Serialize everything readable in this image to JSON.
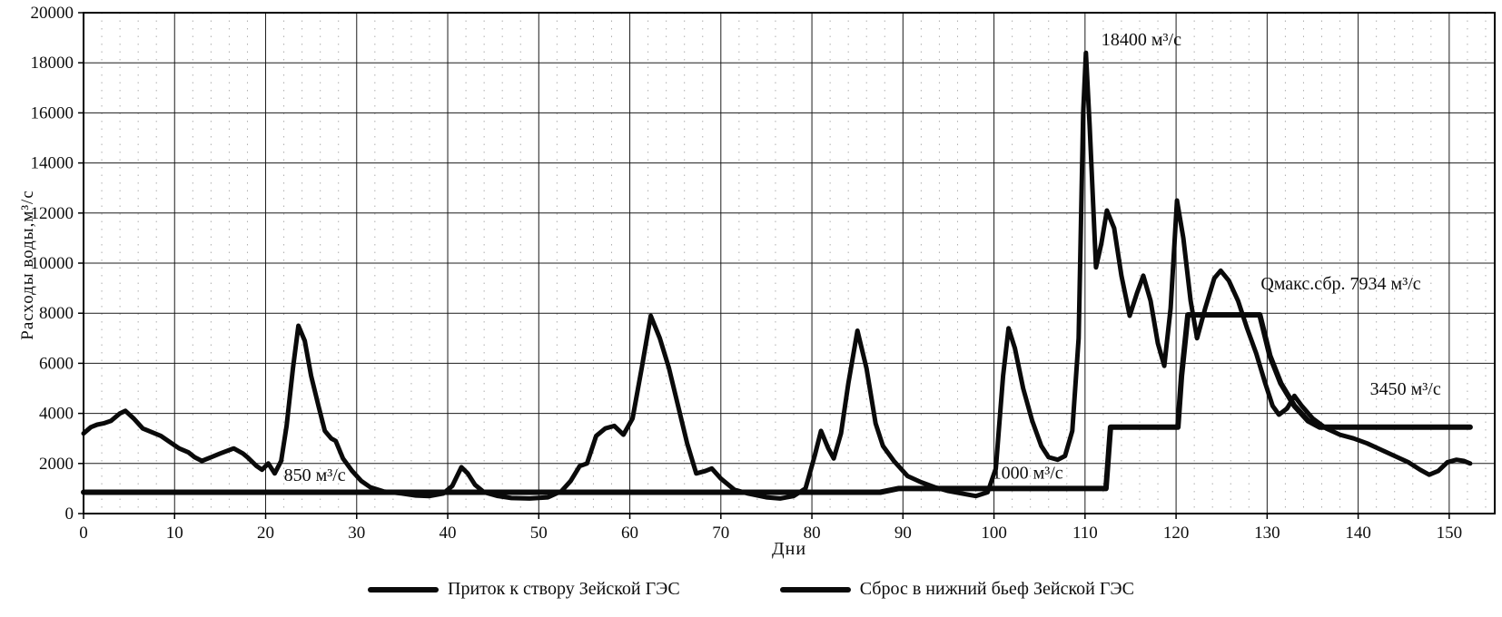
{
  "figure": {
    "xlabel": "Дни",
    "ylabel": "Расходы воды,м³/с"
  },
  "legend": {
    "items": [
      {
        "label": "Приток к створу Зейской ГЭС",
        "color": "#0a0a0a"
      },
      {
        "label": "Сброс в нижний бьеф Зейской ГЭС",
        "color": "#0a0a0a"
      }
    ]
  },
  "chart_data": {
    "type": "line",
    "title": "",
    "xlabel": "Дни",
    "ylabel": "Расходы воды,м³/с",
    "xlim": [
      0,
      155
    ],
    "ylim": [
      0,
      20000
    ],
    "x_ticks": [
      0,
      10,
      20,
      30,
      40,
      50,
      60,
      70,
      80,
      90,
      100,
      110,
      120,
      130,
      140,
      150
    ],
    "y_ticks": [
      0,
      2000,
      4000,
      6000,
      8000,
      10000,
      12000,
      14000,
      16000,
      18000,
      20000
    ],
    "grid": true,
    "legend_position": "bottom",
    "line_color": "#0a0a0a",
    "series": [
      {
        "name": "Приток к створу Зейской ГЭС",
        "color": "#0a0a0a",
        "width": 5,
        "points": [
          [
            0,
            3200
          ],
          [
            0.8,
            3450
          ],
          [
            1.5,
            3550
          ],
          [
            2.2,
            3600
          ],
          [
            3,
            3700
          ],
          [
            4,
            4000
          ],
          [
            4.6,
            4100
          ],
          [
            5.5,
            3800
          ],
          [
            6.5,
            3400
          ],
          [
            7.5,
            3250
          ],
          [
            8.5,
            3100
          ],
          [
            9.5,
            2850
          ],
          [
            10.5,
            2600
          ],
          [
            11.5,
            2450
          ],
          [
            12.2,
            2250
          ],
          [
            13,
            2100
          ],
          [
            14,
            2250
          ],
          [
            15,
            2400
          ],
          [
            16.5,
            2600
          ],
          [
            17.5,
            2400
          ],
          [
            18,
            2250
          ],
          [
            19,
            1900
          ],
          [
            19.6,
            1750
          ],
          [
            20.3,
            2000
          ],
          [
            21,
            1600
          ],
          [
            21.7,
            2100
          ],
          [
            22.3,
            3500
          ],
          [
            23,
            5800
          ],
          [
            23.6,
            7500
          ],
          [
            24.3,
            6900
          ],
          [
            25,
            5500
          ],
          [
            25.8,
            4300
          ],
          [
            26.5,
            3300
          ],
          [
            27.2,
            3000
          ],
          [
            27.7,
            2900
          ],
          [
            28.5,
            2200
          ],
          [
            29.5,
            1700
          ],
          [
            30.5,
            1300
          ],
          [
            31.5,
            1050
          ],
          [
            33,
            880
          ],
          [
            35,
            800
          ],
          [
            36.5,
            720
          ],
          [
            38,
            700
          ],
          [
            39.5,
            800
          ],
          [
            40.5,
            1100
          ],
          [
            41.5,
            1850
          ],
          [
            42.2,
            1600
          ],
          [
            43,
            1150
          ],
          [
            44,
            850
          ],
          [
            45.5,
            700
          ],
          [
            47,
            620
          ],
          [
            49,
            600
          ],
          [
            51,
            650
          ],
          [
            52.5,
            900
          ],
          [
            53.5,
            1300
          ],
          [
            54.5,
            1900
          ],
          [
            55.3,
            2000
          ],
          [
            56.3,
            3100
          ],
          [
            57.3,
            3400
          ],
          [
            58.3,
            3500
          ],
          [
            59.3,
            3150
          ],
          [
            60.3,
            3800
          ],
          [
            61.3,
            5800
          ],
          [
            62.3,
            7900
          ],
          [
            63.3,
            7000
          ],
          [
            64.3,
            5800
          ],
          [
            65.3,
            4300
          ],
          [
            66.3,
            2800
          ],
          [
            67.3,
            1600
          ],
          [
            68.3,
            1700
          ],
          [
            69,
            1800
          ],
          [
            70,
            1400
          ],
          [
            71.5,
            950
          ],
          [
            73,
            800
          ],
          [
            75,
            650
          ],
          [
            76.5,
            600
          ],
          [
            78,
            700
          ],
          [
            79.3,
            1000
          ],
          [
            80.3,
            2300
          ],
          [
            81,
            3300
          ],
          [
            81.8,
            2600
          ],
          [
            82.4,
            2200
          ],
          [
            83.2,
            3200
          ],
          [
            84,
            5200
          ],
          [
            85,
            7300
          ],
          [
            86,
            5800
          ],
          [
            87,
            3600
          ],
          [
            87.8,
            2700
          ],
          [
            89,
            2100
          ],
          [
            90.5,
            1500
          ],
          [
            92,
            1250
          ],
          [
            93.5,
            1050
          ],
          [
            95,
            900
          ],
          [
            96.5,
            800
          ],
          [
            98,
            700
          ],
          [
            99.3,
            850
          ],
          [
            100.2,
            1800
          ],
          [
            101,
            5500
          ],
          [
            101.6,
            7400
          ],
          [
            102.3,
            6600
          ],
          [
            103.2,
            5000
          ],
          [
            104.2,
            3700
          ],
          [
            105.2,
            2700
          ],
          [
            106,
            2250
          ],
          [
            107,
            2150
          ],
          [
            107.8,
            2300
          ],
          [
            108.6,
            3300
          ],
          [
            109.3,
            7000
          ],
          [
            109.8,
            16000
          ],
          [
            110.1,
            18400
          ],
          [
            110.5,
            15500
          ],
          [
            111.2,
            9830
          ],
          [
            111.8,
            10800
          ],
          [
            112.4,
            12100
          ],
          [
            113.2,
            11400
          ],
          [
            114,
            9500
          ],
          [
            114.9,
            7900
          ],
          [
            115.7,
            8800
          ],
          [
            116.4,
            9500
          ],
          [
            117.2,
            8500
          ],
          [
            118,
            6800
          ],
          [
            118.7,
            5900
          ],
          [
            119.4,
            8200
          ],
          [
            120.1,
            12500
          ],
          [
            120.8,
            11000
          ],
          [
            121.6,
            8500
          ],
          [
            122.3,
            7000
          ],
          [
            123.2,
            8200
          ],
          [
            124.2,
            9400
          ],
          [
            124.9,
            9700
          ],
          [
            125.8,
            9300
          ],
          [
            126.8,
            8500
          ],
          [
            127.8,
            7400
          ],
          [
            128.8,
            6400
          ],
          [
            129.8,
            5200
          ],
          [
            130.6,
            4300
          ],
          [
            131.3,
            3950
          ],
          [
            132.2,
            4200
          ],
          [
            133,
            4700
          ],
          [
            133.8,
            4300
          ],
          [
            135,
            3800
          ],
          [
            136.5,
            3400
          ],
          [
            138,
            3150
          ],
          [
            139.5,
            3000
          ],
          [
            141,
            2800
          ],
          [
            142.5,
            2550
          ],
          [
            144,
            2300
          ],
          [
            145.5,
            2050
          ],
          [
            146.8,
            1750
          ],
          [
            147.8,
            1550
          ],
          [
            148.8,
            1700
          ],
          [
            149.8,
            2050
          ],
          [
            150.8,
            2150
          ],
          [
            151.6,
            2100
          ],
          [
            152.3,
            2000
          ]
        ]
      },
      {
        "name": "Сброс в нижний бьеф Зейской ГЭС",
        "color": "#0a0a0a",
        "width": 6,
        "points": [
          [
            0,
            850
          ],
          [
            87.5,
            850
          ],
          [
            89.5,
            1000
          ],
          [
            112.3,
            1000
          ],
          [
            112.8,
            3450
          ],
          [
            120.2,
            3450
          ],
          [
            120.6,
            5500
          ],
          [
            121.3,
            7934
          ],
          [
            129.2,
            7934
          ],
          [
            130.3,
            6300
          ],
          [
            131.5,
            5200
          ],
          [
            133,
            4300
          ],
          [
            134.5,
            3700
          ],
          [
            135.8,
            3450
          ],
          [
            152.3,
            3450
          ]
        ]
      }
    ],
    "annotations": [
      {
        "text": "18400 м³/с",
        "day": 111.8,
        "value": 18700,
        "anchor": "start"
      },
      {
        "text": "Qмакс.сбр. 7934 м³/с",
        "day": 129.3,
        "value": 8950,
        "anchor": "start"
      },
      {
        "text": "3450 м³/с",
        "day": 141.3,
        "value": 4750,
        "anchor": "start"
      },
      {
        "text": "850 м³/с",
        "day": 22.0,
        "value": 1300,
        "anchor": "start"
      },
      {
        "text": "1000 м³/с",
        "day": 99.8,
        "value": 1400,
        "anchor": "start"
      }
    ]
  }
}
